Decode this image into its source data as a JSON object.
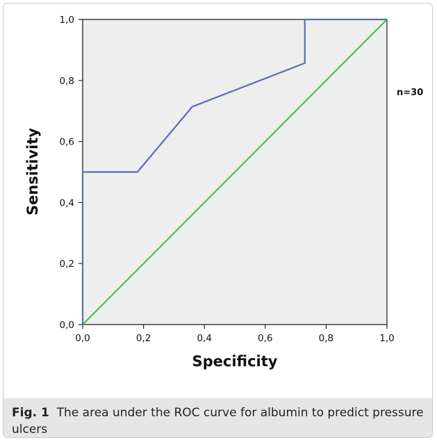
{
  "chart_data": {
    "type": "line",
    "xlabel": "Specificity",
    "ylabel": "Sensitivity",
    "xlim": [
      0,
      1
    ],
    "ylim": [
      0,
      1
    ],
    "x_ticks": [
      "0,0",
      "0,2",
      "0,4",
      "0,6",
      "0,8",
      "1,0"
    ],
    "y_ticks": [
      "0,0",
      "0,2",
      "0,4",
      "0,6",
      "0,8",
      "1,0"
    ],
    "grid": false,
    "annotation": "n=30",
    "series": [
      {
        "color": "#5b6ab8",
        "x": [
          0.0,
          0.0,
          0.18,
          0.36,
          0.73,
          0.73,
          1.0
        ],
        "y": [
          0.0,
          0.5,
          0.5,
          0.714,
          0.857,
          1.0,
          1.0
        ]
      },
      {
        "color": "#4cc04c",
        "x": [
          0.0,
          1.0
        ],
        "y": [
          0.0,
          1.0
        ]
      }
    ]
  },
  "caption": {
    "label": "Fig. 1",
    "text": "The area under the ROC curve for albumin to predict pressure ulcers"
  }
}
